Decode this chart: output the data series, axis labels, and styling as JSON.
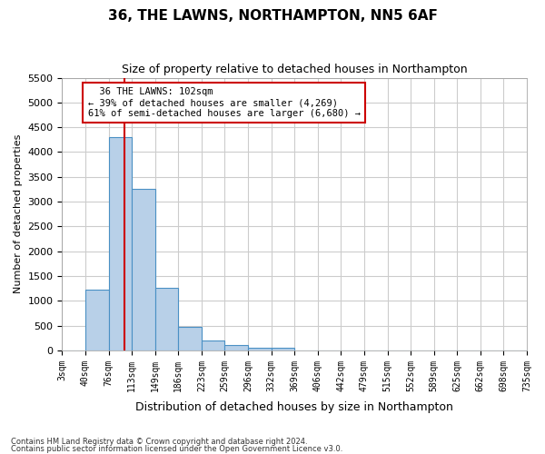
{
  "title": "36, THE LAWNS, NORTHAMPTON, NN5 6AF",
  "subtitle": "Size of property relative to detached houses in Northampton",
  "xlabel": "Distribution of detached houses by size in Northampton",
  "ylabel": "Number of detached properties",
  "footnote1": "Contains HM Land Registry data © Crown copyright and database right 2024.",
  "footnote2": "Contains public sector information licensed under the Open Government Licence v3.0.",
  "annotation_line1": "36 THE LAWNS: 102sqm",
  "annotation_line2": "← 39% of detached houses are smaller (4,269)",
  "annotation_line3": "61% of semi-detached houses are larger (6,680) →",
  "bar_color": "#b8d0e8",
  "bar_edge_color": "#4a90c4",
  "vline_color": "#cc0000",
  "annotation_box_color": "#cc0000",
  "grid_color": "#cccccc",
  "background_color": "#ffffff",
  "bin_labels": [
    "3sqm",
    "40sqm",
    "76sqm",
    "113sqm",
    "149sqm",
    "186sqm",
    "223sqm",
    "259sqm",
    "296sqm",
    "332sqm",
    "369sqm",
    "406sqm",
    "442sqm",
    "479sqm",
    "515sqm",
    "552sqm",
    "589sqm",
    "625sqm",
    "662sqm",
    "698sqm",
    "735sqm"
  ],
  "bar_values": [
    0,
    1230,
    4300,
    3250,
    1260,
    480,
    200,
    100,
    55,
    55,
    0,
    0,
    0,
    0,
    0,
    0,
    0,
    0,
    0,
    0
  ],
  "vline_x": 2.7,
  "ylim": [
    0,
    5500
  ],
  "yticks": [
    0,
    500,
    1000,
    1500,
    2000,
    2500,
    3000,
    3500,
    4000,
    4500,
    5000,
    5500
  ],
  "figsize": [
    6.0,
    5.0
  ],
  "dpi": 100
}
